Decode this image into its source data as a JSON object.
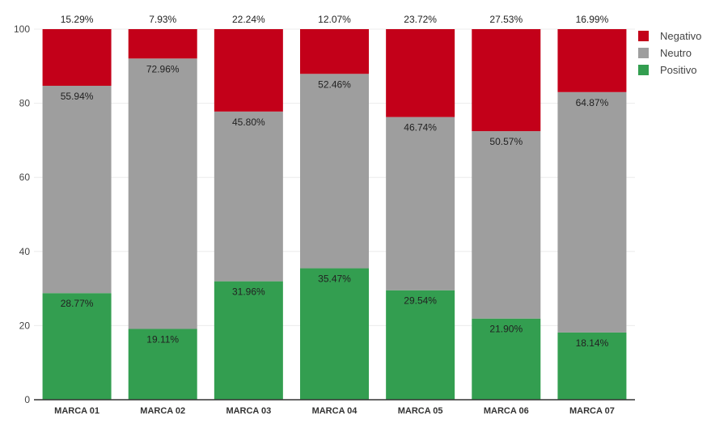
{
  "chart_data": {
    "type": "bar",
    "stacked": true,
    "categories": [
      "MARCA 01",
      "MARCA 02",
      "MARCA 03",
      "MARCA 04",
      "MARCA 05",
      "MARCA 06",
      "MARCA 07"
    ],
    "series": [
      {
        "name": "Positivo",
        "color": "#339e50",
        "values": [
          28.77,
          19.11,
          31.96,
          35.47,
          29.54,
          21.9,
          18.14
        ],
        "labels": [
          "28.77%",
          "19.11%",
          "31.96%",
          "35.47%",
          "29.54%",
          "21.90%",
          "18.14%"
        ]
      },
      {
        "name": "Neutro",
        "color": "#9e9e9e",
        "values": [
          55.94,
          72.96,
          45.8,
          52.46,
          46.74,
          50.57,
          64.87
        ],
        "labels": [
          "55.94%",
          "72.96%",
          "45.80%",
          "52.46%",
          "46.74%",
          "50.57%",
          "64.87%"
        ]
      },
      {
        "name": "Negativo",
        "color": "#c30019",
        "values": [
          15.29,
          7.93,
          22.24,
          12.07,
          23.72,
          27.53,
          16.99
        ],
        "labels": [
          "15.29%",
          "7.93%",
          "22.24%",
          "12.07%",
          "23.72%",
          "27.53%",
          "16.99%"
        ]
      }
    ],
    "legend_order": [
      "Negativo",
      "Neutro",
      "Positivo"
    ],
    "legend_position": "top-right",
    "ylim": [
      0,
      100
    ],
    "yticks": [
      0,
      20,
      40,
      60,
      80,
      100
    ],
    "grid": true,
    "title": "",
    "xlabel": "",
    "ylabel": ""
  }
}
